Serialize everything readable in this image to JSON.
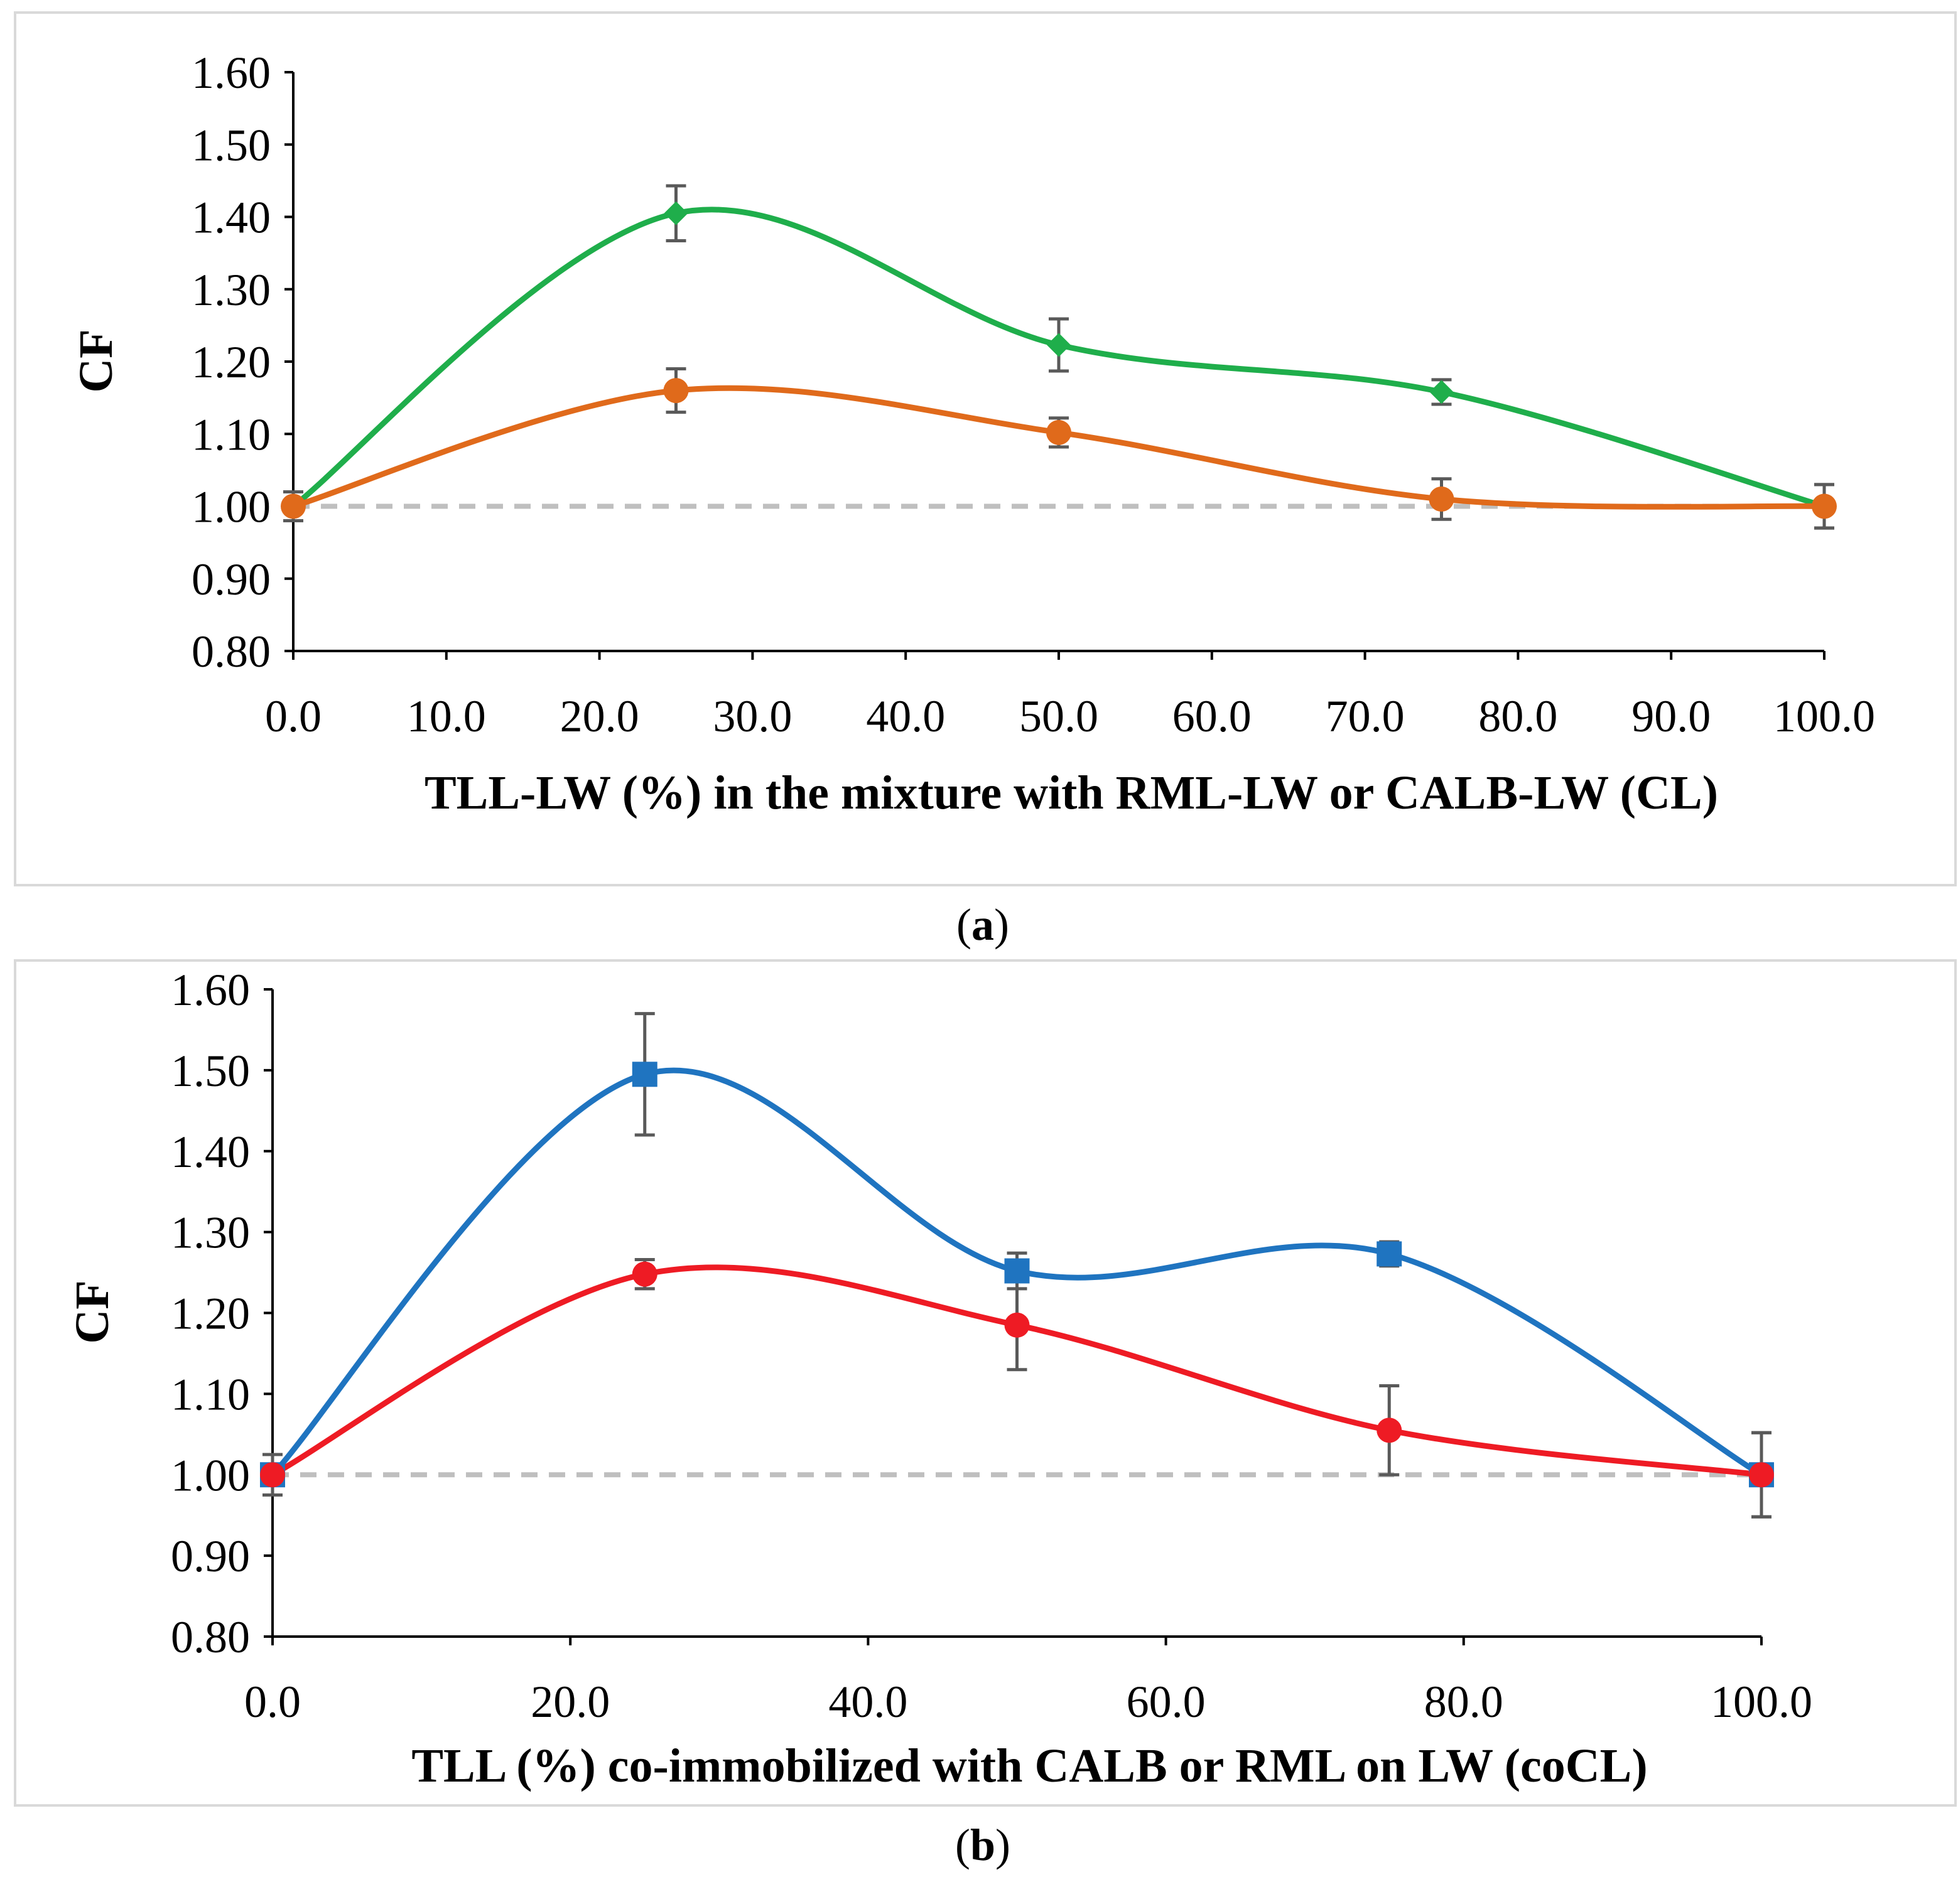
{
  "chart_data": [
    {
      "id": "a",
      "type": "line",
      "panel_label": "a",
      "xlabel": "TLL-LW (%) in the mixture with RML-LW or CALB-LW (CL)",
      "ylabel": "CF",
      "xlim": [
        0,
        100
      ],
      "ylim": [
        0.8,
        1.6
      ],
      "x_ticks": [
        "0.0",
        "10.0",
        "20.0",
        "30.0",
        "40.0",
        "50.0",
        "60.0",
        "70.0",
        "80.0",
        "90.0",
        "100.0"
      ],
      "y_ticks": [
        "0.80",
        "0.90",
        "1.00",
        "1.10",
        "1.20",
        "1.30",
        "1.40",
        "1.50",
        "1.60"
      ],
      "reference_line": 1.0,
      "series": [
        {
          "name": "green",
          "color": "#1fae4b",
          "marker": "diamond",
          "x": [
            0,
            25,
            50,
            75,
            100
          ],
          "values": [
            1.0,
            1.405,
            1.223,
            1.158,
            1.0
          ],
          "errors": [
            0.02,
            0.038,
            0.036,
            0.017,
            0.03
          ]
        },
        {
          "name": "orange",
          "color": "#e06a1b",
          "marker": "circle",
          "x": [
            0,
            25,
            50,
            75,
            100
          ],
          "values": [
            1.0,
            1.16,
            1.102,
            1.01,
            1.0
          ],
          "errors": [
            0.02,
            0.03,
            0.02,
            0.028,
            0.03
          ]
        }
      ]
    },
    {
      "id": "b",
      "type": "line",
      "panel_label": "b",
      "xlabel": "TLL (%) co-immobilized with CALB or RML on LW (coCL)",
      "ylabel": "CF",
      "xlim": [
        0,
        100
      ],
      "ylim": [
        0.8,
        1.6
      ],
      "x_ticks": [
        "0.0",
        "20.0",
        "40.0",
        "60.0",
        "80.0",
        "100.0"
      ],
      "y_ticks": [
        "0.80",
        "0.90",
        "1.00",
        "1.10",
        "1.20",
        "1.30",
        "1.40",
        "1.50",
        "1.60"
      ],
      "reference_line": 1.0,
      "series": [
        {
          "name": "blue",
          "color": "#1f74c0",
          "marker": "square",
          "x": [
            0,
            25,
            50,
            75,
            100
          ],
          "values": [
            1.0,
            1.495,
            1.252,
            1.273,
            1.0
          ],
          "errors": [
            0.025,
            0.075,
            0.022,
            0.015,
            0.052
          ]
        },
        {
          "name": "red",
          "color": "#ee1b24",
          "marker": "circle",
          "x": [
            0,
            25,
            50,
            75,
            100
          ],
          "values": [
            1.0,
            1.248,
            1.185,
            1.055,
            1.0
          ],
          "errors": [
            0.025,
            0.018,
            0.055,
            0.055,
            0.052
          ]
        }
      ]
    }
  ]
}
